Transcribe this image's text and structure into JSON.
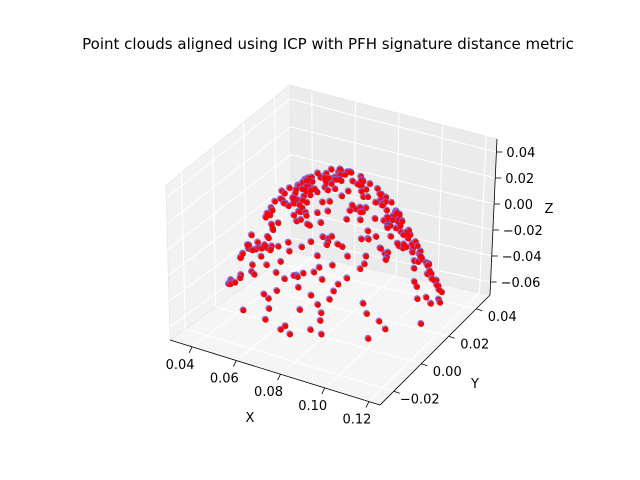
{
  "chart_data": {
    "type": "scatter",
    "projection": "3d",
    "title": "Point clouds aligned using ICP with PFH signature distance metric",
    "xlabel": "X",
    "ylabel": "Y",
    "zlabel": "Z",
    "xlim": [
      0.03,
      0.125
    ],
    "ylim": [
      -0.03,
      0.05
    ],
    "zlim": [
      -0.07,
      0.05
    ],
    "x_ticks": [
      {
        "value": 0.04,
        "label": "0.04"
      },
      {
        "value": 0.06,
        "label": "0.06"
      },
      {
        "value": 0.08,
        "label": "0.08"
      },
      {
        "value": 0.1,
        "label": "0.10"
      },
      {
        "value": 0.12,
        "label": "0.12"
      }
    ],
    "y_ticks": [
      {
        "value": -0.02,
        "label": "−0.02"
      },
      {
        "value": 0.0,
        "label": "0.00"
      },
      {
        "value": 0.02,
        "label": "0.02"
      },
      {
        "value": 0.04,
        "label": "0.04"
      }
    ],
    "z_ticks": [
      {
        "value": 0.04,
        "label": "0.04"
      },
      {
        "value": 0.02,
        "label": "0.02"
      },
      {
        "value": 0.0,
        "label": "0.00"
      },
      {
        "value": -0.02,
        "label": "−0.02"
      },
      {
        "value": -0.04,
        "label": "−0.04"
      },
      {
        "value": -0.06,
        "label": "−0.06"
      }
    ],
    "grid": true,
    "series": [
      {
        "color": "#7f5fd0",
        "marker": "circle"
      },
      {
        "color": "#ff0000",
        "marker": "circle"
      }
    ],
    "point_cloud": {
      "x_range": [
        0.035,
        0.12
      ],
      "y_range": [
        -0.025,
        0.045
      ],
      "z_range": [
        -0.06,
        0.045
      ],
      "shape": "curved surface patch (dome)",
      "description": "overlapping point sets; source points in purple, aligned target points in red"
    }
  }
}
